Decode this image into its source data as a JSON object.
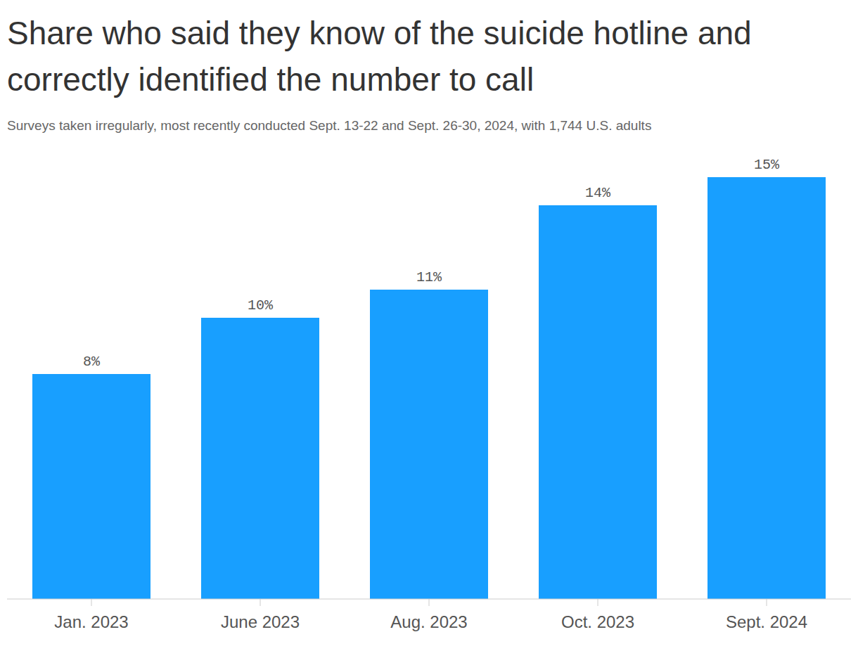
{
  "chart_data": {
    "type": "bar",
    "title": "Share who said they know of the suicide hotline and correctly identified the number to call",
    "subtitle": "Surveys taken irregularly, most recently conducted Sept. 13-22 and Sept. 26-30, 2024, with 1,744 U.S. adults",
    "categories": [
      "Jan. 2023",
      "June 2023",
      "Aug. 2023",
      "Oct. 2023",
      "Sept. 2024"
    ],
    "values": [
      8,
      10,
      11,
      14,
      15
    ],
    "value_labels": [
      "8%",
      "10%",
      "11%",
      "14%",
      "15%"
    ],
    "color": "#189fff",
    "ylim": [
      0,
      15
    ],
    "grid": false,
    "data_labels": true,
    "tick_labels": "x"
  }
}
